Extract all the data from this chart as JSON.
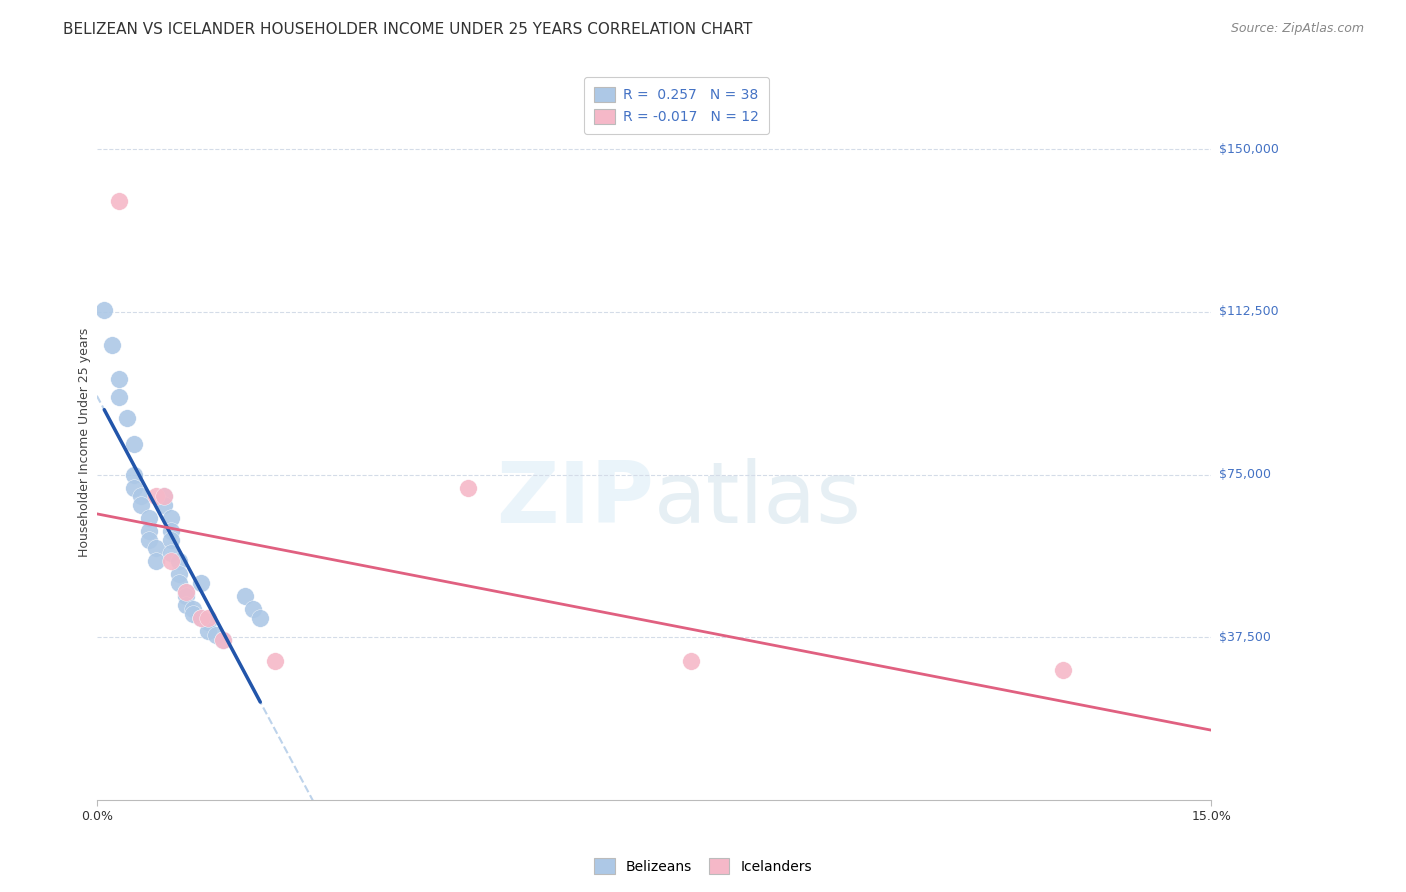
{
  "title": "BELIZEAN VS ICELANDER HOUSEHOLDER INCOME UNDER 25 YEARS CORRELATION CHART",
  "source": "Source: ZipAtlas.com",
  "ylabel": "Householder Income Under 25 years",
  "watermark_zip": "ZIP",
  "watermark_atlas": "atlas",
  "xmin": 0.0,
  "xmax": 0.15,
  "ymin": 0,
  "ymax": 165000,
  "belizean_color": "#adc8e6",
  "belizean_line_color": "#2255aa",
  "icelander_color": "#f5b8c8",
  "icelander_line_color": "#e06080",
  "dashed_line_color": "#adc8e6",
  "grid_color": "#d4dce8",
  "background_color": "#ffffff",
  "ytick_vals": [
    37500,
    75000,
    112500,
    150000
  ],
  "ytick_labels": [
    "$37,500",
    "$75,000",
    "$112,500",
    "$150,000"
  ],
  "belizean_points": [
    [
      0.001,
      113000
    ],
    [
      0.002,
      105000
    ],
    [
      0.003,
      97000
    ],
    [
      0.003,
      93000
    ],
    [
      0.004,
      88000
    ],
    [
      0.005,
      82000
    ],
    [
      0.005,
      75000
    ],
    [
      0.005,
      72000
    ],
    [
      0.006,
      70000
    ],
    [
      0.006,
      68000
    ],
    [
      0.007,
      65000
    ],
    [
      0.007,
      62000
    ],
    [
      0.007,
      60000
    ],
    [
      0.008,
      58000
    ],
    [
      0.008,
      55000
    ],
    [
      0.009,
      70000
    ],
    [
      0.009,
      68000
    ],
    [
      0.01,
      65000
    ],
    [
      0.01,
      62000
    ],
    [
      0.01,
      60000
    ],
    [
      0.01,
      57000
    ],
    [
      0.011,
      55000
    ],
    [
      0.011,
      52000
    ],
    [
      0.011,
      50000
    ],
    [
      0.012,
      48000
    ],
    [
      0.012,
      47000
    ],
    [
      0.012,
      45000
    ],
    [
      0.013,
      44000
    ],
    [
      0.013,
      43000
    ],
    [
      0.014,
      42000
    ],
    [
      0.014,
      50000
    ],
    [
      0.015,
      41000
    ],
    [
      0.015,
      39000
    ],
    [
      0.016,
      38000
    ],
    [
      0.017,
      37000
    ],
    [
      0.02,
      47000
    ],
    [
      0.021,
      44000
    ],
    [
      0.022,
      42000
    ]
  ],
  "icelander_points": [
    [
      0.003,
      138000
    ],
    [
      0.008,
      70000
    ],
    [
      0.009,
      70000
    ],
    [
      0.01,
      55000
    ],
    [
      0.012,
      48000
    ],
    [
      0.014,
      42000
    ],
    [
      0.015,
      42000
    ],
    [
      0.017,
      37000
    ],
    [
      0.024,
      32000
    ],
    [
      0.05,
      72000
    ],
    [
      0.08,
      32000
    ],
    [
      0.13,
      30000
    ]
  ],
  "title_fontsize": 11,
  "source_fontsize": 9,
  "axis_label_fontsize": 9,
  "tick_fontsize": 9,
  "legend_fontsize": 10,
  "marker_size": 160
}
